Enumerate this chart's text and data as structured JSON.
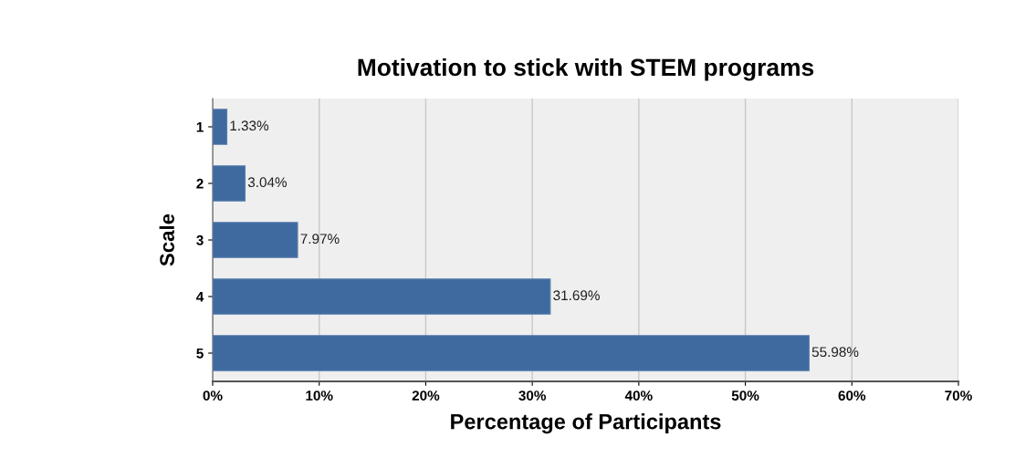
{
  "chart_data": {
    "type": "bar",
    "orientation": "horizontal",
    "title": "Motivation to stick with STEM programs",
    "xlabel": "Percentage of Participants",
    "ylabel": "Scale",
    "categories": [
      "1",
      "2",
      "3",
      "4",
      "5"
    ],
    "values": [
      1.33,
      3.04,
      7.97,
      31.69,
      55.98
    ],
    "value_labels": [
      "1.33%",
      "3.04%",
      "7.97%",
      "31.69%",
      "55.98%"
    ],
    "color": "#3f6a9f",
    "xlim": [
      0,
      70
    ],
    "xticks": [
      {
        "value": 0,
        "label": "0%"
      },
      {
        "value": 10,
        "label": "10%"
      },
      {
        "value": 20,
        "label": "20%"
      },
      {
        "value": 30,
        "label": "30%"
      },
      {
        "value": 40,
        "label": "40%"
      },
      {
        "value": 50,
        "label": "50%"
      },
      {
        "value": 60,
        "label": "60%"
      },
      {
        "value": 70,
        "label": "70%"
      }
    ],
    "grid": "x"
  }
}
